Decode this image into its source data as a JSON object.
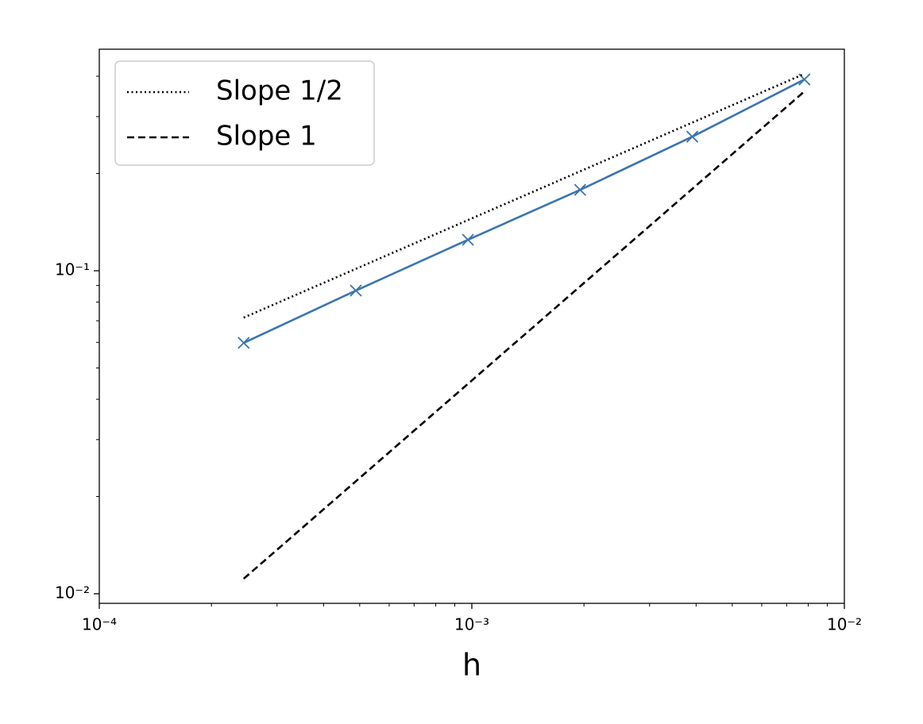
{
  "chart_data": {
    "type": "line",
    "xlabel": "h",
    "xscale": "log",
    "yscale": "log",
    "grid": false,
    "legend": "upper left",
    "xlim": [
      0.0001,
      0.01
    ],
    "ylim": [
      0.00934,
      0.485
    ],
    "xticks": [
      {
        "value": 0.0001,
        "label": "10⁻⁴"
      },
      {
        "value": 0.001,
        "label": "10⁻³"
      },
      {
        "value": 0.01,
        "label": "10⁻²"
      }
    ],
    "yticks": [
      {
        "value": 0.01,
        "label": "10⁻²"
      },
      {
        "value": 0.1,
        "label": "10⁻¹"
      }
    ],
    "xminorticks": [
      0.0002,
      0.0003,
      0.0004,
      0.0005,
      0.0006,
      0.0007,
      0.0008,
      0.0009,
      0.002,
      0.003,
      0.004,
      0.005,
      0.006,
      0.007,
      0.008,
      0.009
    ],
    "yminorticks": [
      0.02,
      0.03,
      0.04,
      0.05,
      0.06,
      0.07,
      0.08,
      0.09,
      0.2,
      0.3,
      0.4
    ],
    "series": [
      {
        "color": "#3b75af",
        "style": "solid",
        "marker": "x",
        "x": [
          0.000244140625,
          0.00048828125,
          0.0009765625,
          0.001953125,
          0.00390625,
          0.0078125
        ],
        "values": [
          0.0598,
          0.0868,
          0.1247,
          0.178,
          0.26,
          0.391
        ]
      },
      {
        "name": "Slope 1/2",
        "color": "#000000",
        "style": "dotted",
        "x": [
          0.000244140625,
          0.0078125
        ],
        "values": [
          0.0716,
          0.407
        ]
      },
      {
        "name": "Slope 1",
        "color": "#000000",
        "style": "dashed",
        "x": [
          0.000244140625,
          0.0078125
        ],
        "values": [
          0.01113,
          0.359
        ]
      }
    ]
  }
}
